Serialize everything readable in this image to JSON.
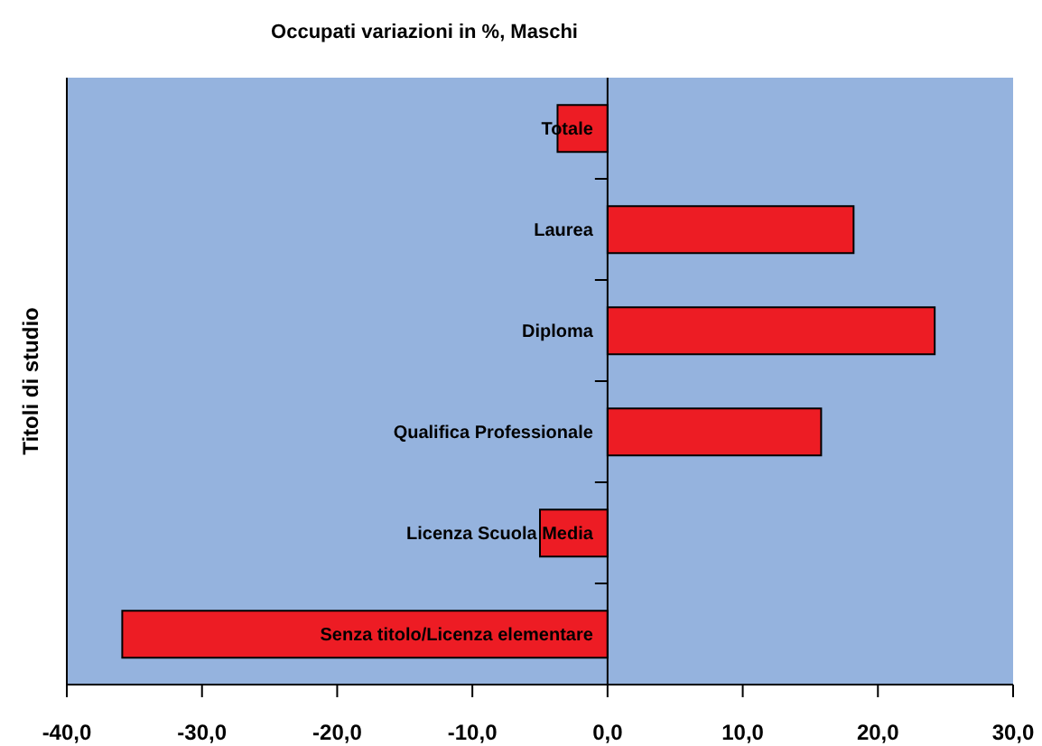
{
  "chart_data": {
    "type": "bar",
    "orientation": "horizontal",
    "title": "Occupati variazioni in %, Maschi",
    "ylabel": "Titoli di studio",
    "categories": [
      "Totale",
      "Laurea",
      "Diploma",
      "Qualifica Professionale",
      "Licenza Scuola Media",
      "Senza titolo/Licenza elementare"
    ],
    "values": [
      -3.7,
      18.2,
      24.2,
      15.8,
      -5.0,
      -35.9
    ],
    "color": "#ed1c24",
    "xlim": [
      -40,
      30
    ],
    "xticks": [
      {
        "value": -40,
        "label": "-40,0"
      },
      {
        "value": -30,
        "label": "-30,0"
      },
      {
        "value": -20,
        "label": "-20,0"
      },
      {
        "value": -10,
        "label": "-10,0"
      },
      {
        "value": 0,
        "label": "0,0"
      },
      {
        "value": 10,
        "label": "10,0"
      },
      {
        "value": 20,
        "label": "20,0"
      },
      {
        "value": 30,
        "label": "30,0"
      }
    ]
  }
}
